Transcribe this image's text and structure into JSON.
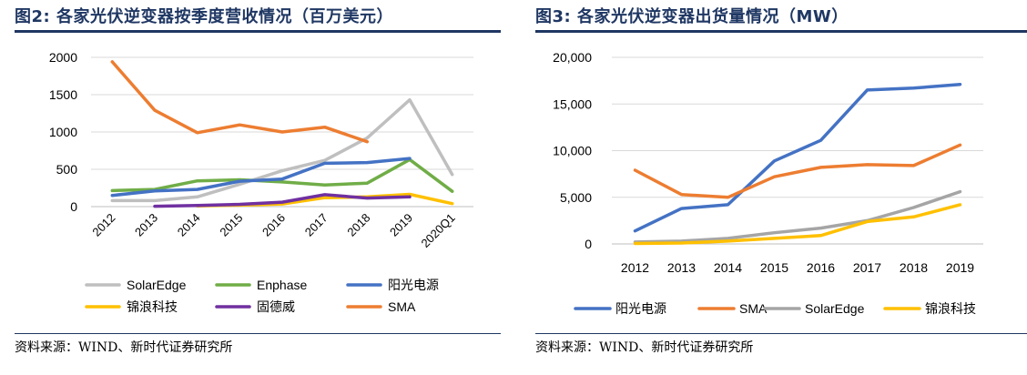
{
  "charts": [
    {
      "figure_title": "图2:  各家光伏逆变器按季度营收情况（百万美元）",
      "source": "资料来源：WIND、新时代证券研究所",
      "chart_data": {
        "type": "line",
        "categories": [
          "2012",
          "2013",
          "2014",
          "2015",
          "2016",
          "2017",
          "2018",
          "2019",
          "2020Q1"
        ],
        "yticks": [
          "0",
          "500",
          "1000",
          "1500",
          "2000"
        ],
        "ylim": [
          0,
          2000
        ],
        "grid": true,
        "legend_position": "bottom",
        "series": [
          {
            "name": "SolarEdge",
            "color": "#bfbfbf",
            "values": [
              80,
              80,
              130,
              300,
              480,
              620,
              920,
              1430,
              430
            ]
          },
          {
            "name": "Enphase",
            "color": "#70ad47",
            "values": [
              215,
              230,
              345,
              360,
              330,
              290,
              315,
              630,
              205
            ]
          },
          {
            "name": "阳光电源",
            "color": "#4472c4",
            "values": [
              150,
              210,
              230,
              340,
              370,
              580,
              590,
              645,
              null
            ]
          },
          {
            "name": "锦浪科技",
            "color": "#ffc000",
            "values": [
              null,
              null,
              10,
              20,
              35,
              120,
              130,
              165,
              40
            ]
          },
          {
            "name": "固德威",
            "color": "#7030a0",
            "values": [
              null,
              5,
              15,
              30,
              60,
              160,
              115,
              130,
              null
            ]
          },
          {
            "name": "SMA",
            "color": "#ed7d31",
            "values": [
              1940,
              1290,
              990,
              1095,
              1000,
              1065,
              870,
              null,
              null
            ]
          }
        ]
      }
    },
    {
      "figure_title": "图3:  各家光伏逆变器出货量情况（MW）",
      "source": "资料来源：WIND、新时代证券研究所",
      "chart_data": {
        "type": "line",
        "categories": [
          "2012",
          "2013",
          "2014",
          "2015",
          "2016",
          "2017",
          "2018",
          "2019"
        ],
        "yticks": [
          "0",
          "5,000",
          "10,000",
          "15,000",
          "20,000"
        ],
        "ylim": [
          0,
          20000
        ],
        "grid": true,
        "legend_position": "bottom",
        "series": [
          {
            "name": "阳光电源",
            "color": "#4472c4",
            "values": [
              1400,
              3800,
              4200,
              8900,
              11100,
              16500,
              16700,
              17100
            ]
          },
          {
            "name": "SMA",
            "color": "#ed7d31",
            "values": [
              7900,
              5300,
              5000,
              7200,
              8200,
              8500,
              8400,
              10600
            ]
          },
          {
            "name": "SolarEdge",
            "color": "#a5a5a5",
            "values": [
              200,
              300,
              600,
              1200,
              1700,
              2500,
              3900,
              5600
            ]
          },
          {
            "name": "锦浪科技",
            "color": "#ffc000",
            "values": [
              50,
              100,
              300,
              600,
              900,
              2400,
              2900,
              4200
            ]
          }
        ]
      }
    }
  ]
}
